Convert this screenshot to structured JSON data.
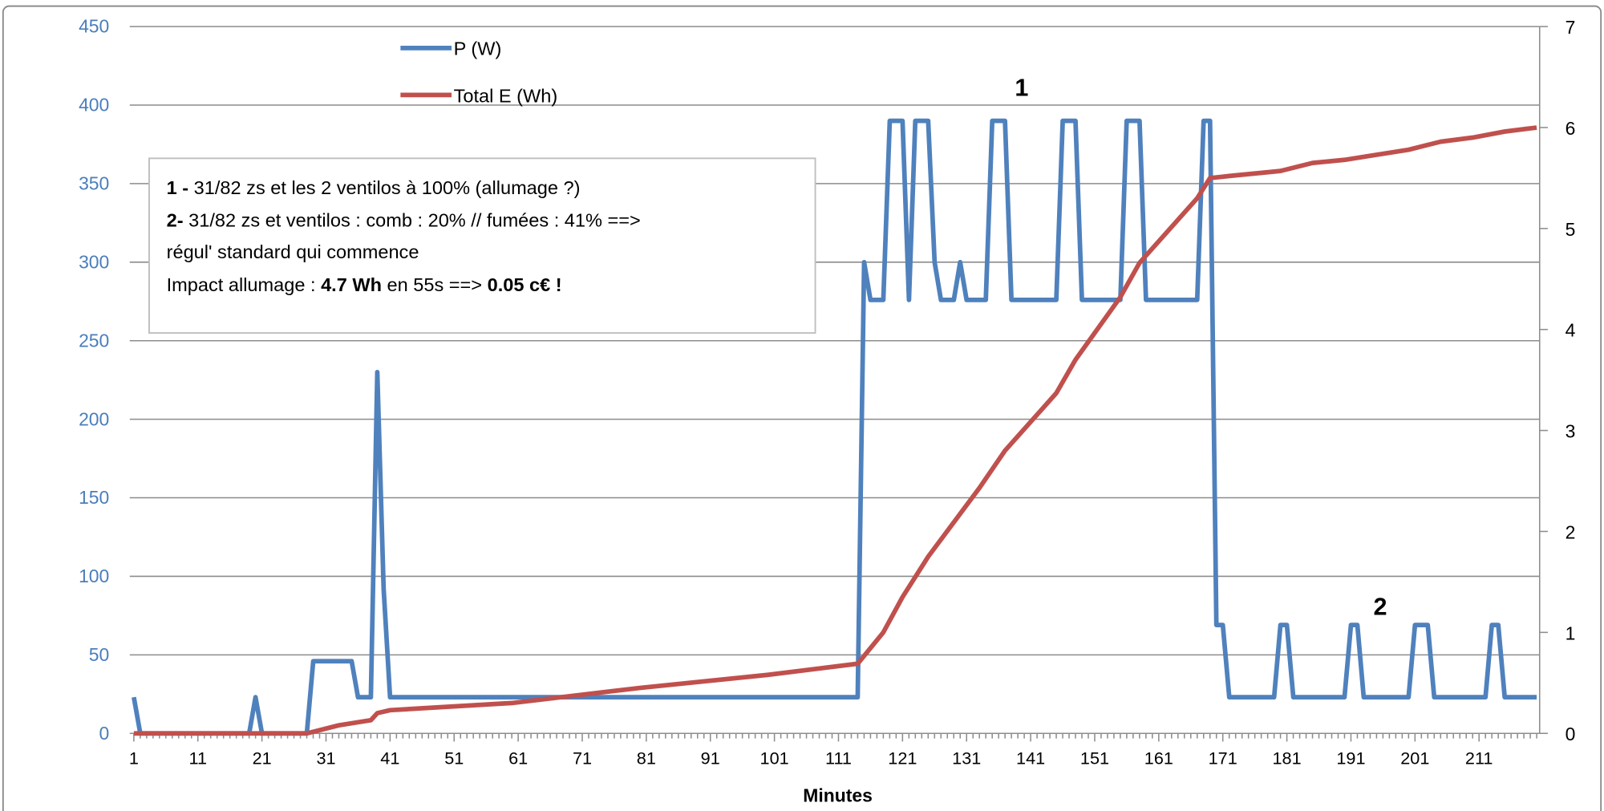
{
  "chart_data": {
    "type": "line",
    "title": "",
    "xlabel": "Minutes",
    "ylabel_left": "",
    "ylabel_right": "",
    "x_tick_labels": [
      "1",
      "11",
      "21",
      "31",
      "41",
      "51",
      "61",
      "71",
      "81",
      "91",
      "101",
      "111",
      "121",
      "131",
      "141",
      "151",
      "161",
      "171",
      "181",
      "191",
      "201",
      "211"
    ],
    "xlim": [
      1,
      220
    ],
    "ylim_left": [
      0,
      450
    ],
    "y_ticks_left": [
      0,
      50,
      100,
      150,
      200,
      250,
      300,
      350,
      400,
      450
    ],
    "ylim_right": [
      0,
      7
    ],
    "y_ticks_right": [
      0,
      1,
      2,
      3,
      4,
      5,
      6,
      7
    ],
    "grid": true,
    "legend_position": "top-left",
    "series": [
      {
        "name": "P (W)",
        "axis": "left",
        "color": "#4f81bd",
        "points": [
          [
            1,
            23
          ],
          [
            2,
            0
          ],
          [
            19,
            0
          ],
          [
            20,
            23
          ],
          [
            21,
            0
          ],
          [
            28,
            0
          ],
          [
            29,
            46
          ],
          [
            35,
            46
          ],
          [
            36,
            23
          ],
          [
            38,
            23
          ],
          [
            39,
            230
          ],
          [
            40,
            92
          ],
          [
            41,
            23
          ],
          [
            114,
            23
          ],
          [
            115,
            300
          ],
          [
            116,
            276
          ],
          [
            118,
            276
          ],
          [
            119,
            390
          ],
          [
            121,
            390
          ],
          [
            122,
            276
          ],
          [
            123,
            390
          ],
          [
            125,
            390
          ],
          [
            126,
            300
          ],
          [
            127,
            276
          ],
          [
            129,
            276
          ],
          [
            130,
            300
          ],
          [
            131,
            276
          ],
          [
            134,
            276
          ],
          [
            135,
            390
          ],
          [
            137,
            390
          ],
          [
            138,
            276
          ],
          [
            145,
            276
          ],
          [
            146,
            390
          ],
          [
            148,
            390
          ],
          [
            149,
            276
          ],
          [
            155,
            276
          ],
          [
            156,
            390
          ],
          [
            158,
            390
          ],
          [
            159,
            276
          ],
          [
            167,
            276
          ],
          [
            168,
            390
          ],
          [
            169,
            390
          ],
          [
            170,
            69
          ],
          [
            171,
            69
          ],
          [
            172,
            23
          ],
          [
            179,
            23
          ],
          [
            180,
            69
          ],
          [
            181,
            69
          ],
          [
            182,
            23
          ],
          [
            190,
            23
          ],
          [
            191,
            69
          ],
          [
            192,
            69
          ],
          [
            193,
            23
          ],
          [
            200,
            23
          ],
          [
            201,
            69
          ],
          [
            203,
            69
          ],
          [
            204,
            23
          ],
          [
            212,
            23
          ],
          [
            213,
            69
          ],
          [
            214,
            69
          ],
          [
            215,
            23
          ],
          [
            220,
            23
          ]
        ]
      },
      {
        "name": "Total E (Wh)",
        "axis": "right",
        "color": "#c0504d",
        "points": [
          [
            1,
            0
          ],
          [
            28,
            0
          ],
          [
            33,
            0.08
          ],
          [
            37,
            0.12
          ],
          [
            38,
            0.13
          ],
          [
            39,
            0.2
          ],
          [
            41,
            0.23
          ],
          [
            60,
            0.3
          ],
          [
            80,
            0.45
          ],
          [
            100,
            0.58
          ],
          [
            114,
            0.69
          ],
          [
            118,
            1.0
          ],
          [
            121,
            1.35
          ],
          [
            125,
            1.75
          ],
          [
            133,
            2.43
          ],
          [
            137,
            2.8
          ],
          [
            145,
            3.37
          ],
          [
            148,
            3.7
          ],
          [
            155,
            4.32
          ],
          [
            158,
            4.66
          ],
          [
            167,
            5.3
          ],
          [
            169,
            5.5
          ],
          [
            172,
            5.52
          ],
          [
            180,
            5.57
          ],
          [
            185,
            5.65
          ],
          [
            190,
            5.68
          ],
          [
            195,
            5.73
          ],
          [
            200,
            5.78
          ],
          [
            205,
            5.86
          ],
          [
            210,
            5.9
          ],
          [
            215,
            5.96
          ],
          [
            220,
            6.0
          ]
        ]
      }
    ],
    "annotations": [
      {
        "label": "1",
        "x": 140,
        "y_left": 410
      },
      {
        "label": "2",
        "x": 196,
        "y_left": 78
      }
    ],
    "note_box": {
      "line1_bold": "1 - ",
      "line1": "31/82 zs  et les 2 ventilos à 100% (allumage ?)",
      "line2_bold": "2- ",
      "line2": "31/82 zs et ventilos : comb : 20%  // fumées : 41% ==>",
      "line3": "régul' standard qui commence",
      "line4_a": "Impact allumage : ",
      "line4_b": "4.7 Wh",
      "line4_c": " en 55s ==> ",
      "line4_d": "0.05 c€ !"
    }
  }
}
